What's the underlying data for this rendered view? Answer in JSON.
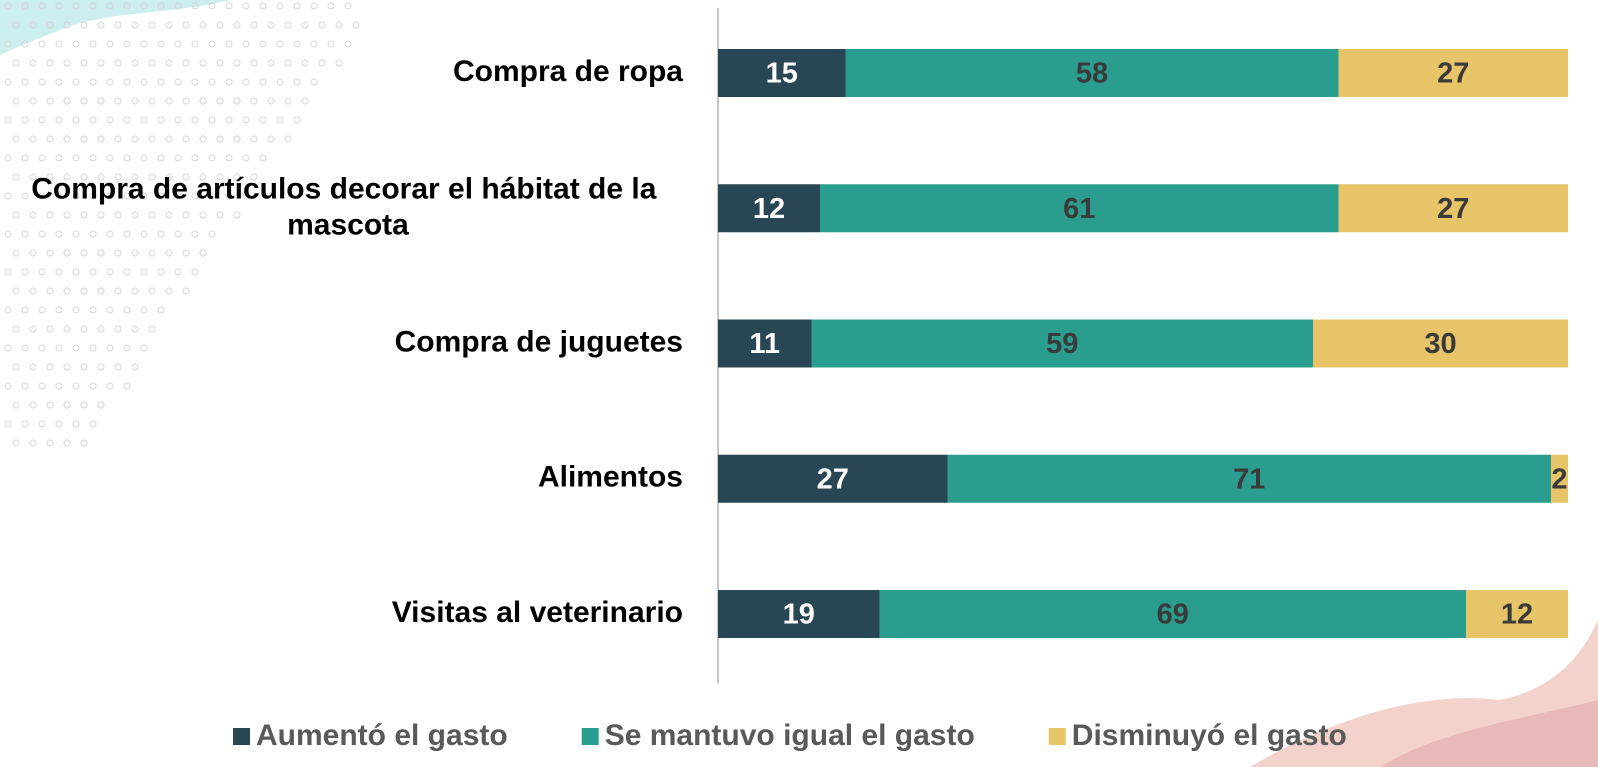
{
  "chart_data": {
    "type": "bar",
    "orientation": "horizontal",
    "stacked": true,
    "categories": [
      "Compra de ropa",
      "Compra de artículos decorar el hábitat de la mascota",
      "Compra de juguetes",
      "Alimentos",
      "Visitas al veterinario"
    ],
    "series": [
      {
        "name": "Aumentó el gasto",
        "color": "#284654",
        "label_color": "#ffffff",
        "values": [
          15,
          12,
          11,
          27,
          19
        ]
      },
      {
        "name": "Se mantuvo igual el gasto",
        "color": "#2a9d8e",
        "label_color": "#3a3a3a",
        "values": [
          58,
          61,
          59,
          71,
          69
        ]
      },
      {
        "name": "Disminuyó el gasto",
        "color": "#e8c468",
        "label_color": "#3a3a3a",
        "values": [
          27,
          27,
          30,
          2,
          12
        ]
      }
    ],
    "xlim": [
      0,
      100
    ],
    "legend": "bottom"
  }
}
